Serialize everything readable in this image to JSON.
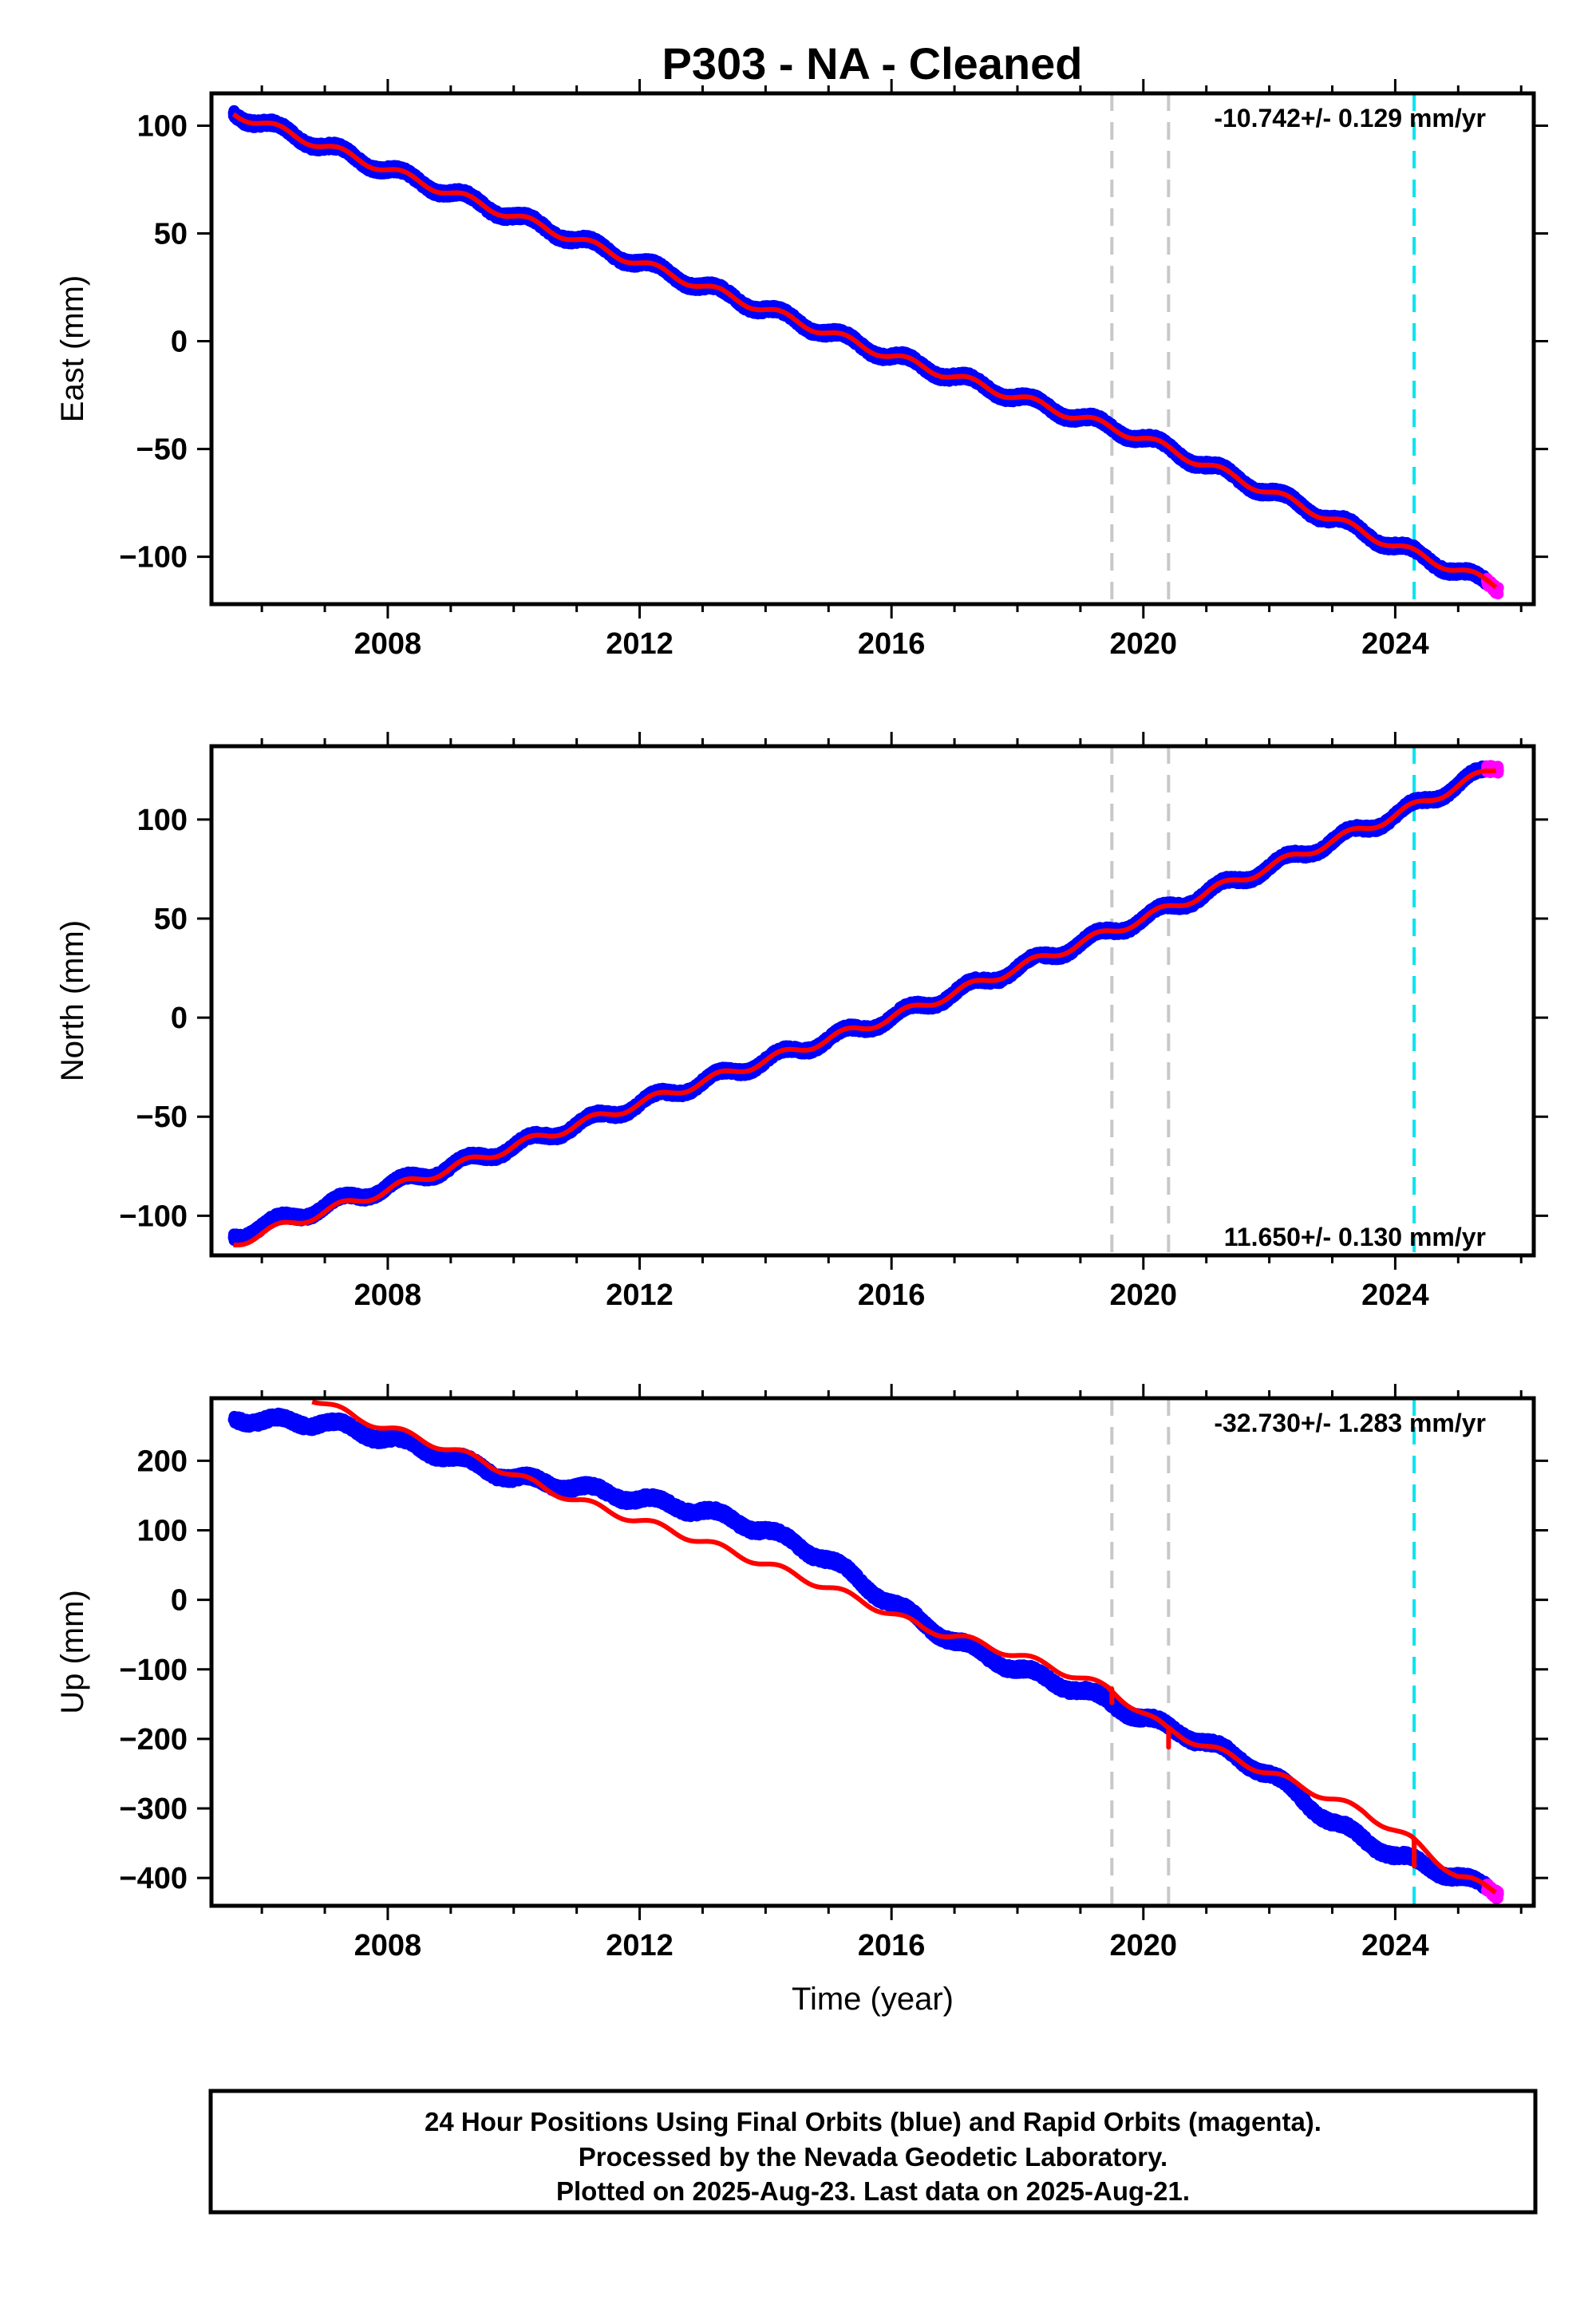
{
  "title": "P303  - NA - Cleaned",
  "colors": {
    "final_orbits": "#0000ff",
    "rapid_orbits": "#ff00ff",
    "model": "#ff0000",
    "equipment_change": "#c8c8c8",
    "event": "#00e5ee"
  },
  "chart_data": [
    {
      "type": "scatter",
      "name": "east",
      "ylabel": "East (mm)",
      "xlim": [
        2005.2,
        2026.2
      ],
      "ylim": [
        -122,
        115
      ],
      "x_ticks": [
        2008,
        2012,
        2016,
        2020,
        2024
      ],
      "x_tick_labels": [
        "2008",
        "2012",
        "2016",
        "2020",
        "2024"
      ],
      "y_ticks": [
        100,
        50,
        0,
        -50,
        -100
      ],
      "y_tick_labels": [
        "100",
        "50",
        "0",
        "−50",
        "−100"
      ],
      "rate_label": "-10.742+/- 0.129 mm/yr",
      "rate_position": "top-right",
      "velocity": -10.742,
      "seasonal_amplitude": 2.2,
      "noise": 1.8,
      "x_start": 2005.55,
      "rapid_from": 2025.45,
      "x_end": 2025.64,
      "series_points": [
        [
          2005.55,
          106
        ],
        [
          2010,
          58
        ],
        [
          2016,
          -7
        ],
        [
          2020,
          -45
        ],
        [
          2024,
          -95
        ],
        [
          2025.6,
          -114
        ]
      ],
      "model_points": [
        [
          2005.55,
          106
        ],
        [
          2010,
          58
        ],
        [
          2016,
          -7
        ],
        [
          2020,
          -45
        ],
        [
          2024,
          -95
        ],
        [
          2025.6,
          -113
        ]
      ],
      "model_steps": [],
      "gray_lines": [
        2019.5,
        2020.4
      ],
      "cyan_lines": [
        2024.3
      ]
    },
    {
      "type": "scatter",
      "name": "north",
      "ylabel": "North (mm)",
      "xlim": [
        2005.2,
        2026.2
      ],
      "ylim": [
        -120,
        137
      ],
      "x_ticks": [
        2008,
        2012,
        2016,
        2020,
        2024
      ],
      "x_tick_labels": [
        "2008",
        "2012",
        "2016",
        "2020",
        "2024"
      ],
      "y_ticks": [
        100,
        50,
        0,
        -50,
        -100
      ],
      "y_tick_labels": [
        "100",
        "50",
        "0",
        "−50",
        "−100"
      ],
      "rate_label": "11.650+/- 0.130 mm/yr",
      "rate_position": "bottom-right",
      "velocity": 11.65,
      "seasonal_amplitude": 2.5,
      "noise": 1.8,
      "x_start": 2005.55,
      "rapid_from": 2025.45,
      "x_end": 2025.64,
      "series_points": [
        [
          2005.55,
          -110
        ],
        [
          2010,
          -65
        ],
        [
          2016,
          0
        ],
        [
          2020,
          50
        ],
        [
          2024,
          102
        ],
        [
          2025.6,
          127
        ]
      ],
      "model_points": [
        [
          2005.55,
          -114
        ],
        [
          2010,
          -65
        ],
        [
          2016,
          0
        ],
        [
          2020,
          50
        ],
        [
          2024,
          102
        ],
        [
          2025.6,
          126
        ]
      ],
      "model_steps": [],
      "gray_lines": [
        2019.5,
        2020.4
      ],
      "cyan_lines": [
        2024.3
      ]
    },
    {
      "type": "scatter",
      "name": "up",
      "ylabel": "Up (mm)",
      "xlabel": "Time (year)",
      "xlim": [
        2005.2,
        2026.2
      ],
      "ylim": [
        -440,
        290
      ],
      "x_ticks": [
        2008,
        2012,
        2016,
        2020,
        2024
      ],
      "x_tick_labels": [
        "2008",
        "2012",
        "2016",
        "2020",
        "2024"
      ],
      "y_ticks": [
        200,
        100,
        0,
        -100,
        -200,
        -300,
        -400
      ],
      "y_tick_labels": [
        "200",
        "100",
        "0",
        "−100",
        "−200",
        "−300",
        "−400"
      ],
      "rate_label": "-32.730+/- 1.283 mm/yr",
      "rate_position": "top-right",
      "velocity": -32.73,
      "seasonal_amplitude": 6,
      "noise": 6,
      "x_start": 2005.55,
      "rapid_from": 2025.45,
      "x_end": 2025.64,
      "series_points": [
        [
          2005.55,
          263
        ],
        [
          2006,
          257
        ],
        [
          2007,
          255
        ],
        [
          2008,
          232
        ],
        [
          2009,
          205
        ],
        [
          2010,
          175
        ],
        [
          2011,
          162
        ],
        [
          2012,
          145
        ],
        [
          2013,
          128
        ],
        [
          2014,
          100
        ],
        [
          2015,
          58
        ],
        [
          2016,
          -5
        ],
        [
          2017,
          -60
        ],
        [
          2018,
          -100
        ],
        [
          2019,
          -130
        ],
        [
          2020,
          -170
        ],
        [
          2021,
          -205
        ],
        [
          2022,
          -250
        ],
        [
          2023,
          -320
        ],
        [
          2024,
          -368
        ],
        [
          2025,
          -398
        ],
        [
          2025.6,
          -420
        ]
      ],
      "model_points": [
        [
          2006.8,
          290
        ],
        [
          2007.5,
          262
        ],
        [
          2008.5,
          232
        ],
        [
          2009.5,
          200
        ],
        [
          2010.5,
          160
        ],
        [
          2011.5,
          128
        ],
        [
          2012.5,
          100
        ],
        [
          2013.5,
          68
        ],
        [
          2014.5,
          35
        ],
        [
          2015.5,
          0
        ],
        [
          2016.5,
          -40
        ],
        [
          2017.5,
          -65
        ],
        [
          2018.5,
          -95
        ],
        [
          2019.45,
          -128
        ],
        [
          2020.35,
          -185
        ],
        [
          2021.5,
          -230
        ],
        [
          2022.5,
          -268
        ],
        [
          2023.5,
          -305
        ],
        [
          2024.25,
          -345
        ],
        [
          2025.0,
          -398
        ],
        [
          2025.6,
          -418
        ]
      ],
      "model_steps": [
        [
          2019.5,
          -128,
          -148
        ],
        [
          2020.4,
          -185,
          -212
        ],
        [
          2024.3,
          -350,
          -383
        ]
      ],
      "gray_lines": [
        2019.5,
        2020.4
      ],
      "cyan_lines": [
        2024.3
      ]
    }
  ],
  "footer": {
    "line1": "24 Hour Positions Using Final Orbits (blue) and Rapid Orbits (magenta).",
    "line2": "Processed by the Nevada Geodetic Laboratory.",
    "line3": "Plotted on 2025-Aug-23. Last data on 2025-Aug-21."
  }
}
